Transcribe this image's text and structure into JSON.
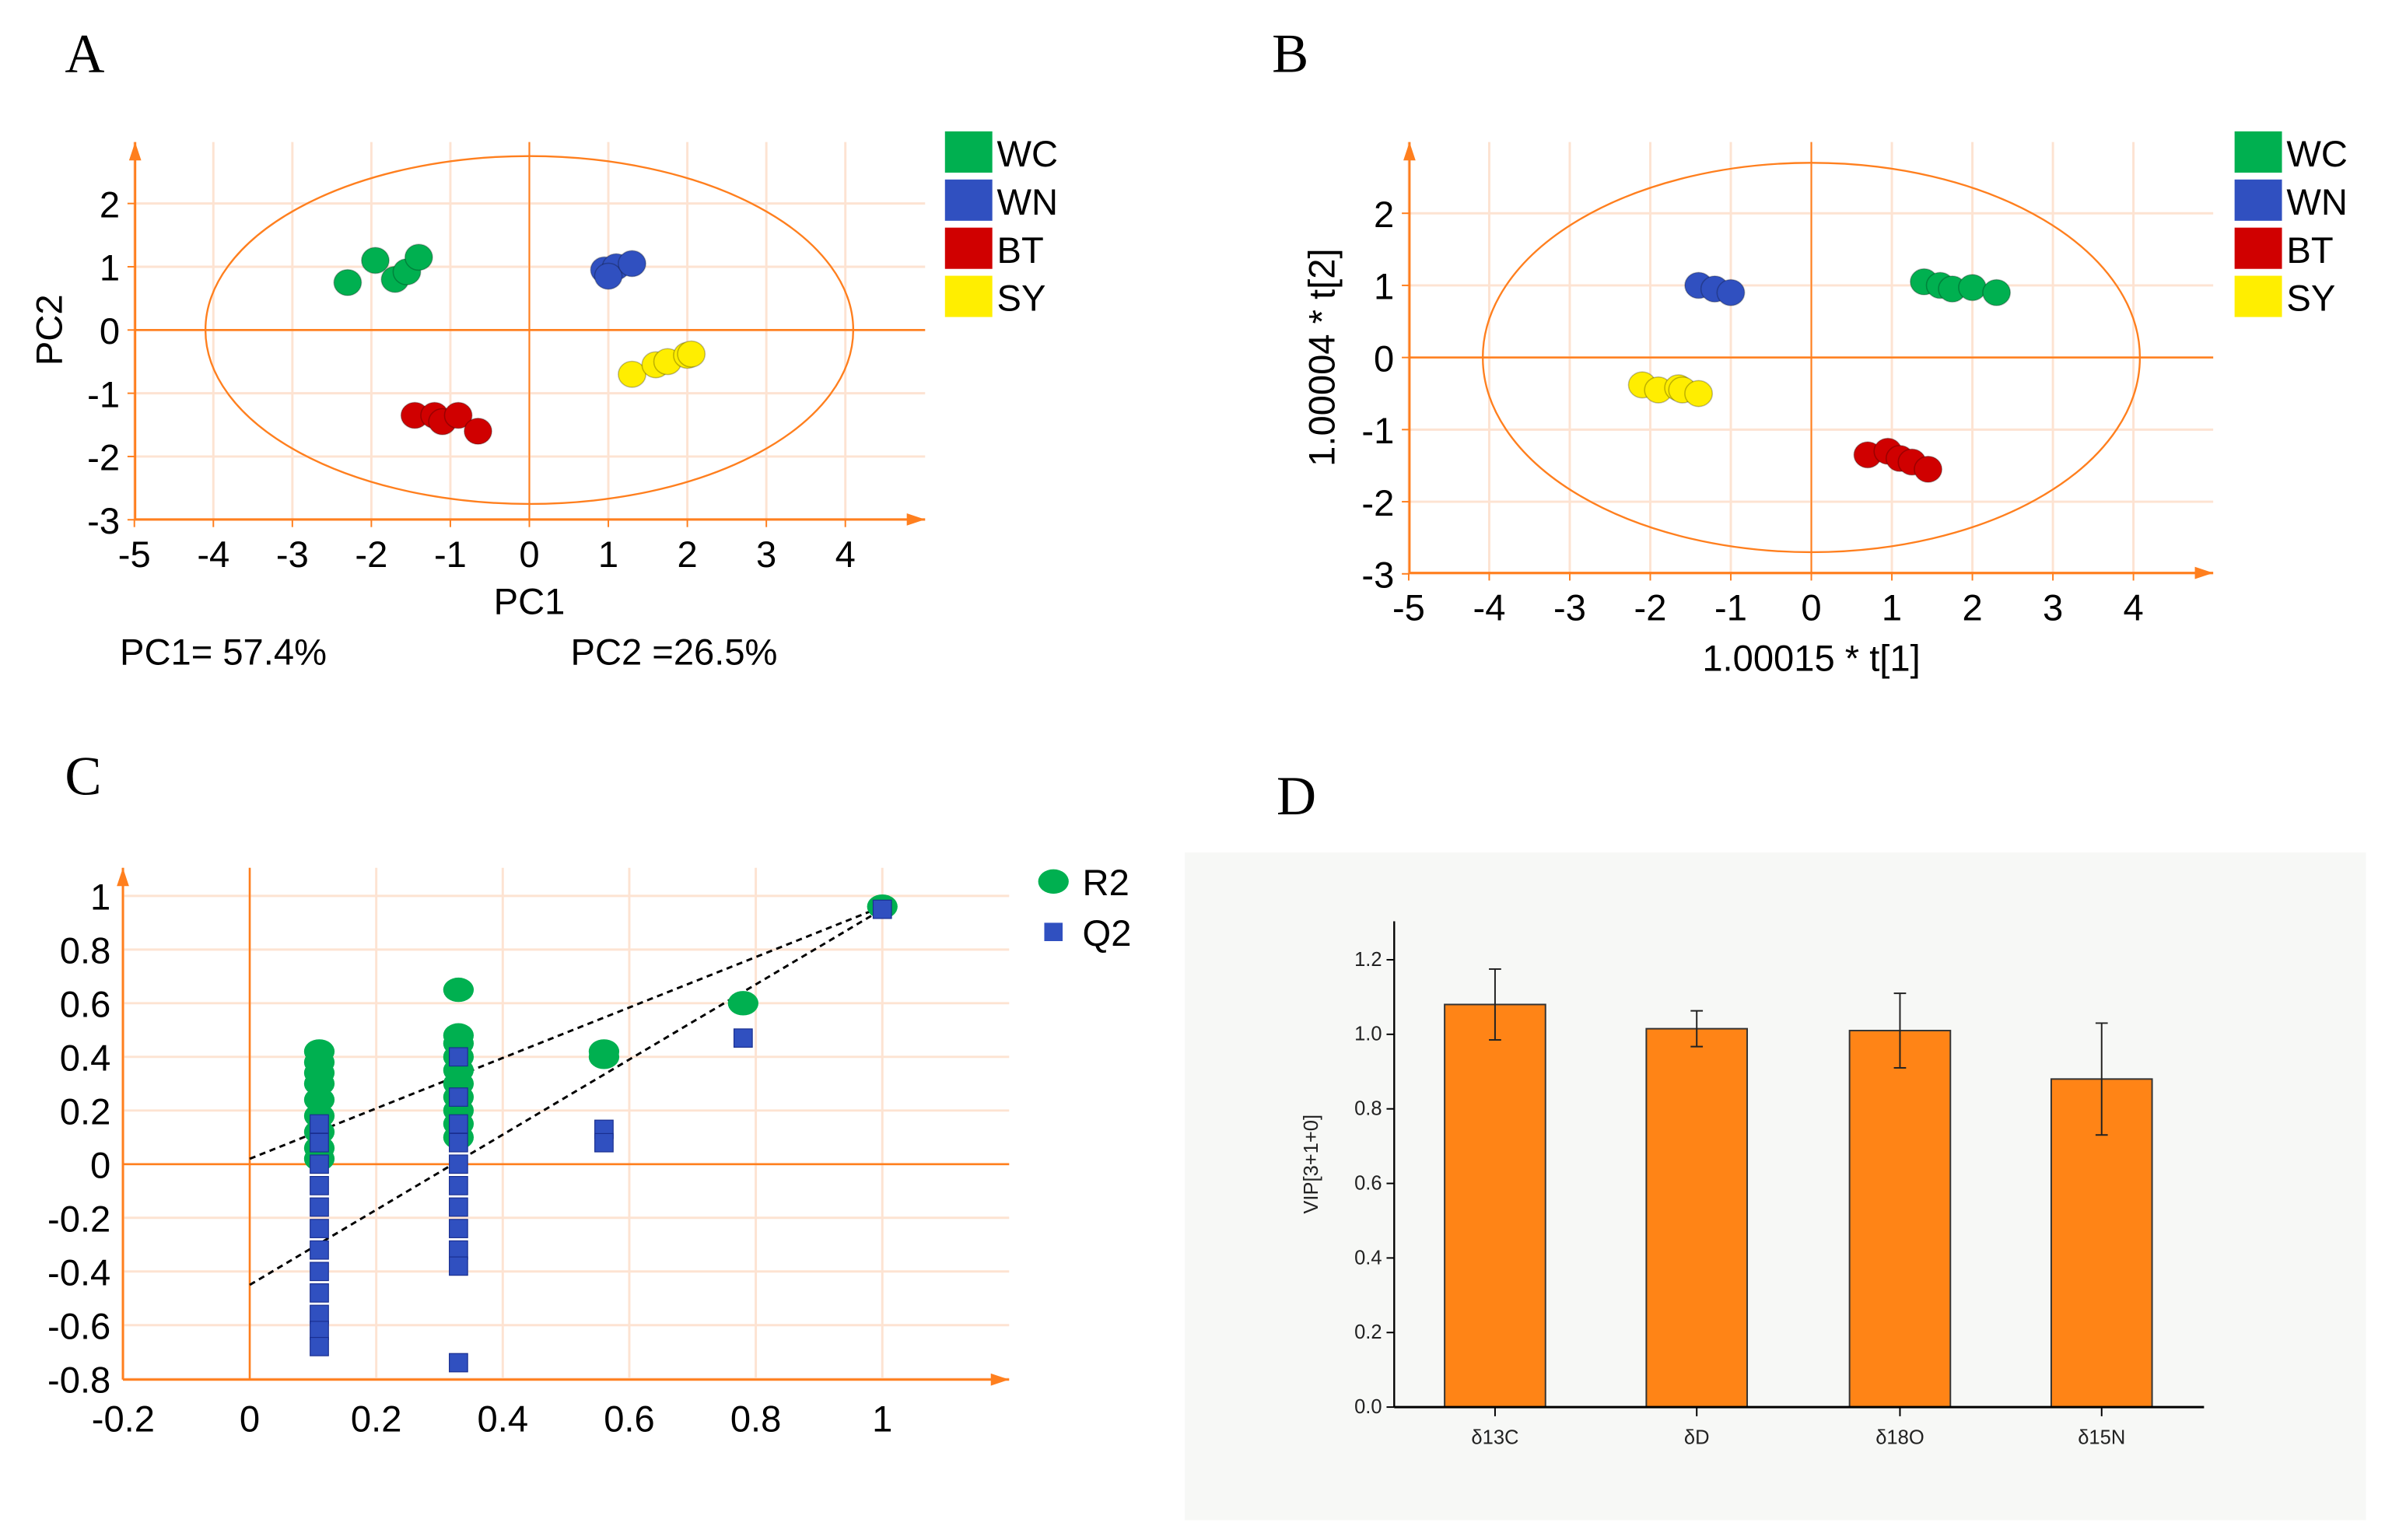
{
  "panels": {
    "a": "A",
    "b": "B",
    "c": "C",
    "d": "D"
  },
  "colors": {
    "axis": "#ff7f1e",
    "grid": "#fde3d2",
    "WC": "#00b050",
    "WN": "#3050c0",
    "BT": "#d00000",
    "SY": "#ffee00",
    "bar": "#ff8416",
    "R2": "#00b050",
    "Q2": "#3050c0"
  },
  "chart_data": [
    {
      "type": "scatter",
      "panel": "A",
      "xlabel": "PC1",
      "ylabel": "PC2",
      "xlim": [
        -5,
        5
      ],
      "ylim": [
        -3,
        2.9
      ],
      "xticks": [
        "-5",
        "-4",
        "-3",
        "-2",
        "-1",
        "0",
        "1",
        "2",
        "3",
        "4"
      ],
      "yticks": [
        "2",
        "1",
        "0",
        "-1",
        "-2",
        "-3"
      ],
      "grid": true,
      "legend_position": "right",
      "ellipse": {
        "rx": 4.1,
        "ry": 2.75
      },
      "annotations": [
        "PC1= 57.4%",
        "PC2 =26.5%"
      ],
      "series": [
        {
          "name": "WC",
          "points": [
            [
              -2.3,
              0.75
            ],
            [
              -1.95,
              1.1
            ],
            [
              -1.7,
              0.8
            ],
            [
              -1.55,
              0.92
            ],
            [
              -1.4,
              1.15
            ]
          ]
        },
        {
          "name": "WN",
          "points": [
            [
              0.95,
              0.95
            ],
            [
              1.1,
              1.0
            ],
            [
              1.0,
              0.85
            ],
            [
              1.3,
              1.05
            ]
          ]
        },
        {
          "name": "BT",
          "points": [
            [
              -1.45,
              -1.35
            ],
            [
              -1.2,
              -1.35
            ],
            [
              -1.1,
              -1.45
            ],
            [
              -0.9,
              -1.35
            ],
            [
              -0.65,
              -1.6
            ]
          ]
        },
        {
          "name": "SY",
          "points": [
            [
              1.3,
              -0.7
            ],
            [
              1.6,
              -0.55
            ],
            [
              1.75,
              -0.5
            ],
            [
              2.0,
              -0.4
            ],
            [
              2.05,
              -0.38
            ]
          ]
        }
      ]
    },
    {
      "type": "scatter",
      "panel": "B",
      "xlabel": "1.00015 * t[1]",
      "ylabel": "1.00004 * t[2]",
      "xlim": [
        -5,
        5
      ],
      "ylim": [
        -3,
        2.9
      ],
      "xticks": [
        "-5",
        "-4",
        "-3",
        "-2",
        "-1",
        "0",
        "1",
        "2",
        "3",
        "4"
      ],
      "yticks": [
        "2",
        "1",
        "0",
        "-1",
        "-2",
        "-3"
      ],
      "grid": true,
      "legend_position": "right",
      "ellipse": {
        "rx": 4.08,
        "ry": 2.7
      },
      "series": [
        {
          "name": "WC",
          "points": [
            [
              1.4,
              1.05
            ],
            [
              1.6,
              1.0
            ],
            [
              1.75,
              0.95
            ],
            [
              2.0,
              0.97
            ],
            [
              2.3,
              0.9
            ]
          ]
        },
        {
          "name": "WN",
          "points": [
            [
              -1.4,
              1.0
            ],
            [
              -1.2,
              0.95
            ],
            [
              -1.0,
              0.9
            ]
          ]
        },
        {
          "name": "BT",
          "points": [
            [
              0.7,
              -1.35
            ],
            [
              0.95,
              -1.3
            ],
            [
              1.1,
              -1.4
            ],
            [
              1.25,
              -1.45
            ],
            [
              1.45,
              -1.55
            ]
          ]
        },
        {
          "name": "SY",
          "points": [
            [
              -2.1,
              -0.38
            ],
            [
              -1.9,
              -0.45
            ],
            [
              -1.65,
              -0.42
            ],
            [
              -1.6,
              -0.45
            ],
            [
              -1.4,
              -0.5
            ]
          ]
        }
      ]
    },
    {
      "type": "scatter",
      "panel": "C",
      "xlabel": "",
      "ylabel": "",
      "xlim": [
        -0.2,
        1.2
      ],
      "ylim": [
        -0.8,
        1.1
      ],
      "xticks": [
        "-0.2",
        "0",
        "0.2",
        "0.4",
        "0.6",
        "0.8",
        "1"
      ],
      "yticks": [
        "1",
        "0.8",
        "0.6",
        "0.4",
        "0.2",
        "0",
        "-0.2",
        "-0.4",
        "-0.6",
        "-0.8"
      ],
      "grid": true,
      "legend_position": "right",
      "series": [
        {
          "name": "R2",
          "marker": "circle",
          "intercept": 0.02,
          "endpoint": 0.96,
          "points": [
            [
              0.11,
              0.42
            ],
            [
              0.11,
              0.38
            ],
            [
              0.11,
              0.34
            ],
            [
              0.11,
              0.3
            ],
            [
              0.11,
              0.24
            ],
            [
              0.11,
              0.18
            ],
            [
              0.11,
              0.12
            ],
            [
              0.11,
              0.06
            ],
            [
              0.11,
              0.02
            ],
            [
              0.33,
              0.65
            ],
            [
              0.33,
              0.48
            ],
            [
              0.33,
              0.45
            ],
            [
              0.33,
              0.4
            ],
            [
              0.33,
              0.35
            ],
            [
              0.33,
              0.3
            ],
            [
              0.33,
              0.25
            ],
            [
              0.33,
              0.2
            ],
            [
              0.33,
              0.15
            ],
            [
              0.33,
              0.1
            ],
            [
              0.56,
              0.42
            ],
            [
              0.56,
              0.4
            ],
            [
              0.78,
              0.6
            ],
            [
              1.0,
              0.96
            ]
          ]
        },
        {
          "name": "Q2",
          "marker": "square",
          "intercept": -0.45,
          "endpoint": 0.95,
          "points": [
            [
              0.11,
              0.15
            ],
            [
              0.11,
              0.08
            ],
            [
              0.11,
              0.0
            ],
            [
              0.11,
              -0.08
            ],
            [
              0.11,
              -0.16
            ],
            [
              0.11,
              -0.24
            ],
            [
              0.11,
              -0.32
            ],
            [
              0.11,
              -0.4
            ],
            [
              0.11,
              -0.48
            ],
            [
              0.11,
              -0.56
            ],
            [
              0.11,
              -0.62
            ],
            [
              0.11,
              -0.68
            ],
            [
              0.33,
              0.4
            ],
            [
              0.33,
              0.25
            ],
            [
              0.33,
              0.15
            ],
            [
              0.33,
              0.08
            ],
            [
              0.33,
              0.0
            ],
            [
              0.33,
              -0.08
            ],
            [
              0.33,
              -0.16
            ],
            [
              0.33,
              -0.24
            ],
            [
              0.33,
              -0.32
            ],
            [
              0.33,
              -0.38
            ],
            [
              0.33,
              -0.74
            ],
            [
              0.56,
              0.13
            ],
            [
              0.56,
              0.08
            ],
            [
              0.78,
              0.47
            ],
            [
              1.0,
              0.95
            ]
          ]
        }
      ]
    },
    {
      "type": "bar",
      "panel": "D",
      "xlabel": "",
      "ylabel": "VIP[3+1+0]",
      "ylim": [
        0,
        1.3
      ],
      "yticks": [
        "0.0",
        "0.2",
        "0.4",
        "0.6",
        "0.8",
        "1.0",
        "1.2"
      ],
      "categories": [
        "δ13C",
        "δD",
        "δ18O",
        "δ15N"
      ],
      "values": [
        1.08,
        1.015,
        1.01,
        0.88
      ],
      "errors": [
        0.095,
        0.048,
        0.1,
        0.15
      ],
      "grid": false
    }
  ]
}
